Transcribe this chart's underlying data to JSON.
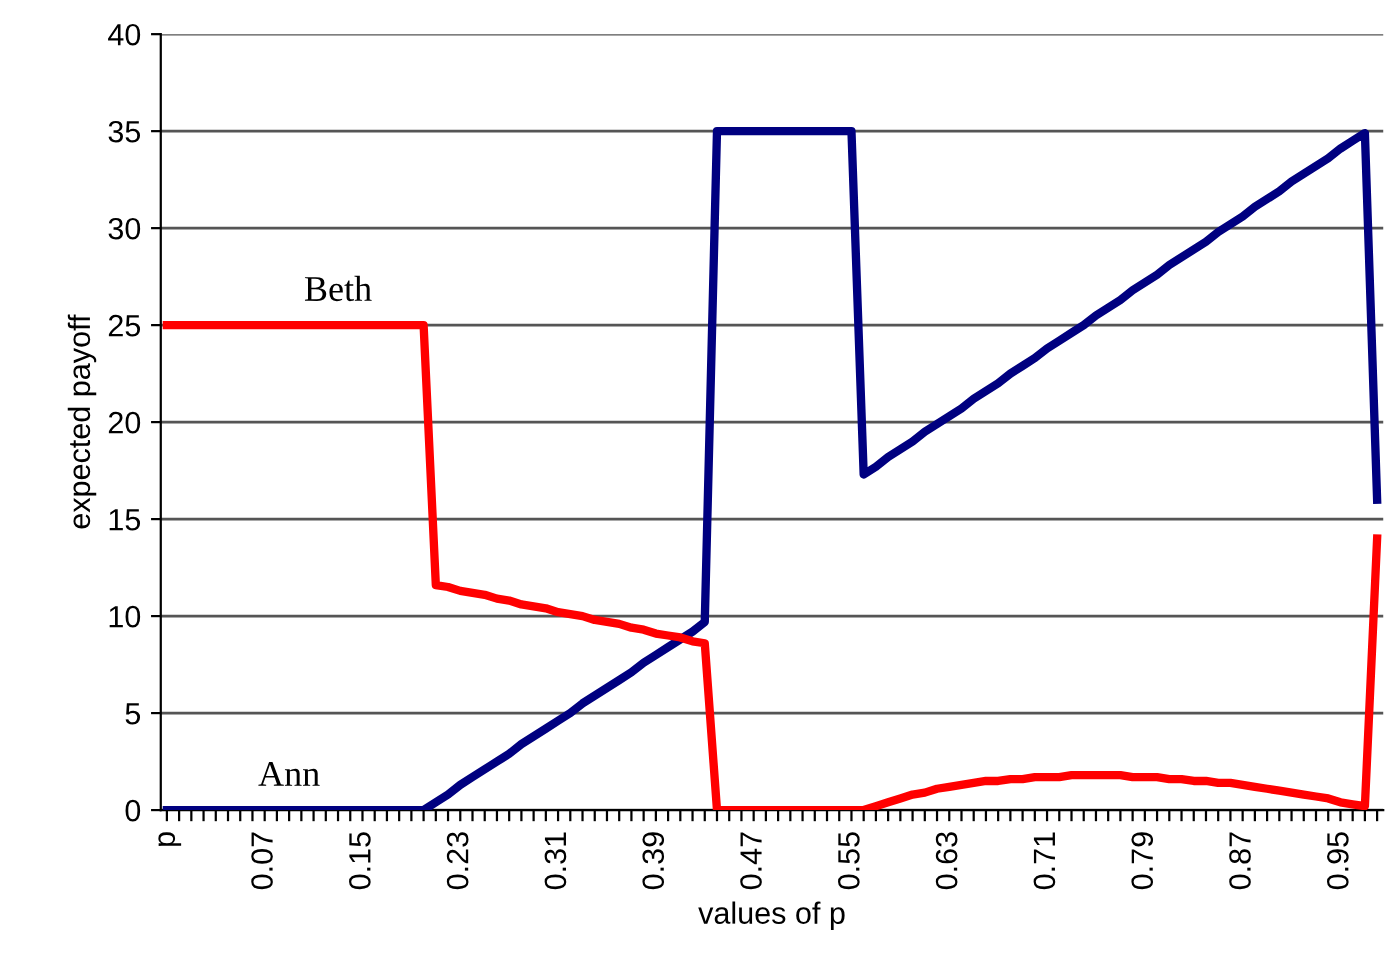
{
  "chart_data": {
    "type": "line",
    "xlabel": "values of p",
    "ylabel": "expected payoff",
    "categories": [
      "p",
      null,
      null,
      null,
      null,
      null,
      null,
      null,
      "0.07",
      null,
      null,
      null,
      null,
      null,
      null,
      null,
      "0.15",
      null,
      null,
      null,
      null,
      null,
      null,
      null,
      "0.23",
      null,
      null,
      null,
      null,
      null,
      null,
      null,
      "0.31",
      null,
      null,
      null,
      null,
      null,
      null,
      null,
      "0.39",
      null,
      null,
      null,
      null,
      null,
      null,
      null,
      "0.47",
      null,
      null,
      null,
      null,
      null,
      null,
      null,
      "0.55",
      null,
      null,
      null,
      null,
      null,
      null,
      null,
      "0.63",
      null,
      null,
      null,
      null,
      null,
      null,
      null,
      "0.71",
      null,
      null,
      null,
      null,
      null,
      null,
      null,
      "0.79",
      null,
      null,
      null,
      null,
      null,
      null,
      null,
      "0.87",
      null,
      null,
      null,
      null,
      null,
      null,
      null,
      "0.95",
      null,
      null,
      null
    ],
    "series": [
      {
        "name": "Ann",
        "color": "#000080",
        "values": [
          0,
          0,
          0,
          0,
          0,
          0,
          0,
          0,
          0,
          0,
          0,
          0,
          0,
          0,
          0,
          0,
          0,
          0,
          0,
          0,
          0,
          0,
          0.4,
          0.8,
          1.3,
          1.7,
          2.1,
          2.5,
          2.9,
          3.4,
          3.8,
          4.2,
          4.6,
          5.0,
          5.5,
          5.9,
          6.3,
          6.7,
          7.1,
          7.6,
          8.0,
          8.4,
          8.8,
          9.2,
          9.7,
          35,
          35,
          35,
          35,
          35,
          35,
          35,
          35,
          35,
          35,
          35,
          35,
          17.3,
          17.7,
          18.2,
          18.6,
          19.0,
          19.5,
          19.9,
          20.3,
          20.7,
          21.2,
          21.6,
          22.0,
          22.5,
          22.9,
          23.3,
          23.8,
          24.2,
          24.6,
          25.0,
          25.5,
          25.9,
          26.3,
          26.8,
          27.2,
          27.6,
          28.1,
          28.5,
          28.9,
          29.3,
          29.8,
          30.2,
          30.6,
          31.1,
          31.5,
          31.9,
          32.4,
          32.8,
          33.2,
          33.6,
          34.1,
          34.5,
          34.9,
          16
        ]
      },
      {
        "name": "Beth",
        "color": "#ff0000",
        "values": [
          25,
          25,
          25,
          25,
          25,
          25,
          25,
          25,
          25,
          25,
          25,
          25,
          25,
          25,
          25,
          25,
          25,
          25,
          25,
          25,
          25,
          25,
          11.6,
          11.5,
          11.3,
          11.2,
          11.1,
          10.9,
          10.8,
          10.6,
          10.5,
          10.4,
          10.2,
          10.1,
          10.0,
          9.8,
          9.7,
          9.6,
          9.4,
          9.3,
          9.1,
          9.0,
          8.9,
          8.7,
          8.6,
          0,
          0,
          0,
          0,
          0,
          0,
          0,
          0,
          0,
          0,
          0,
          0,
          0.0,
          0.2,
          0.4,
          0.6,
          0.8,
          0.9,
          1.1,
          1.2,
          1.3,
          1.4,
          1.5,
          1.5,
          1.6,
          1.6,
          1.7,
          1.7,
          1.7,
          1.8,
          1.8,
          1.8,
          1.8,
          1.8,
          1.7,
          1.7,
          1.7,
          1.6,
          1.6,
          1.5,
          1.5,
          1.4,
          1.4,
          1.3,
          1.2,
          1.1,
          1.0,
          0.9,
          0.8,
          0.7,
          0.6,
          0.4,
          0.3,
          0.2,
          14
        ]
      }
    ],
    "ylim": [
      0,
      40
    ],
    "yticks": [
      0,
      5,
      10,
      15,
      20,
      25,
      30,
      35,
      40
    ],
    "grid": "y",
    "legend": false,
    "marker": "none",
    "line_style": "solid"
  }
}
